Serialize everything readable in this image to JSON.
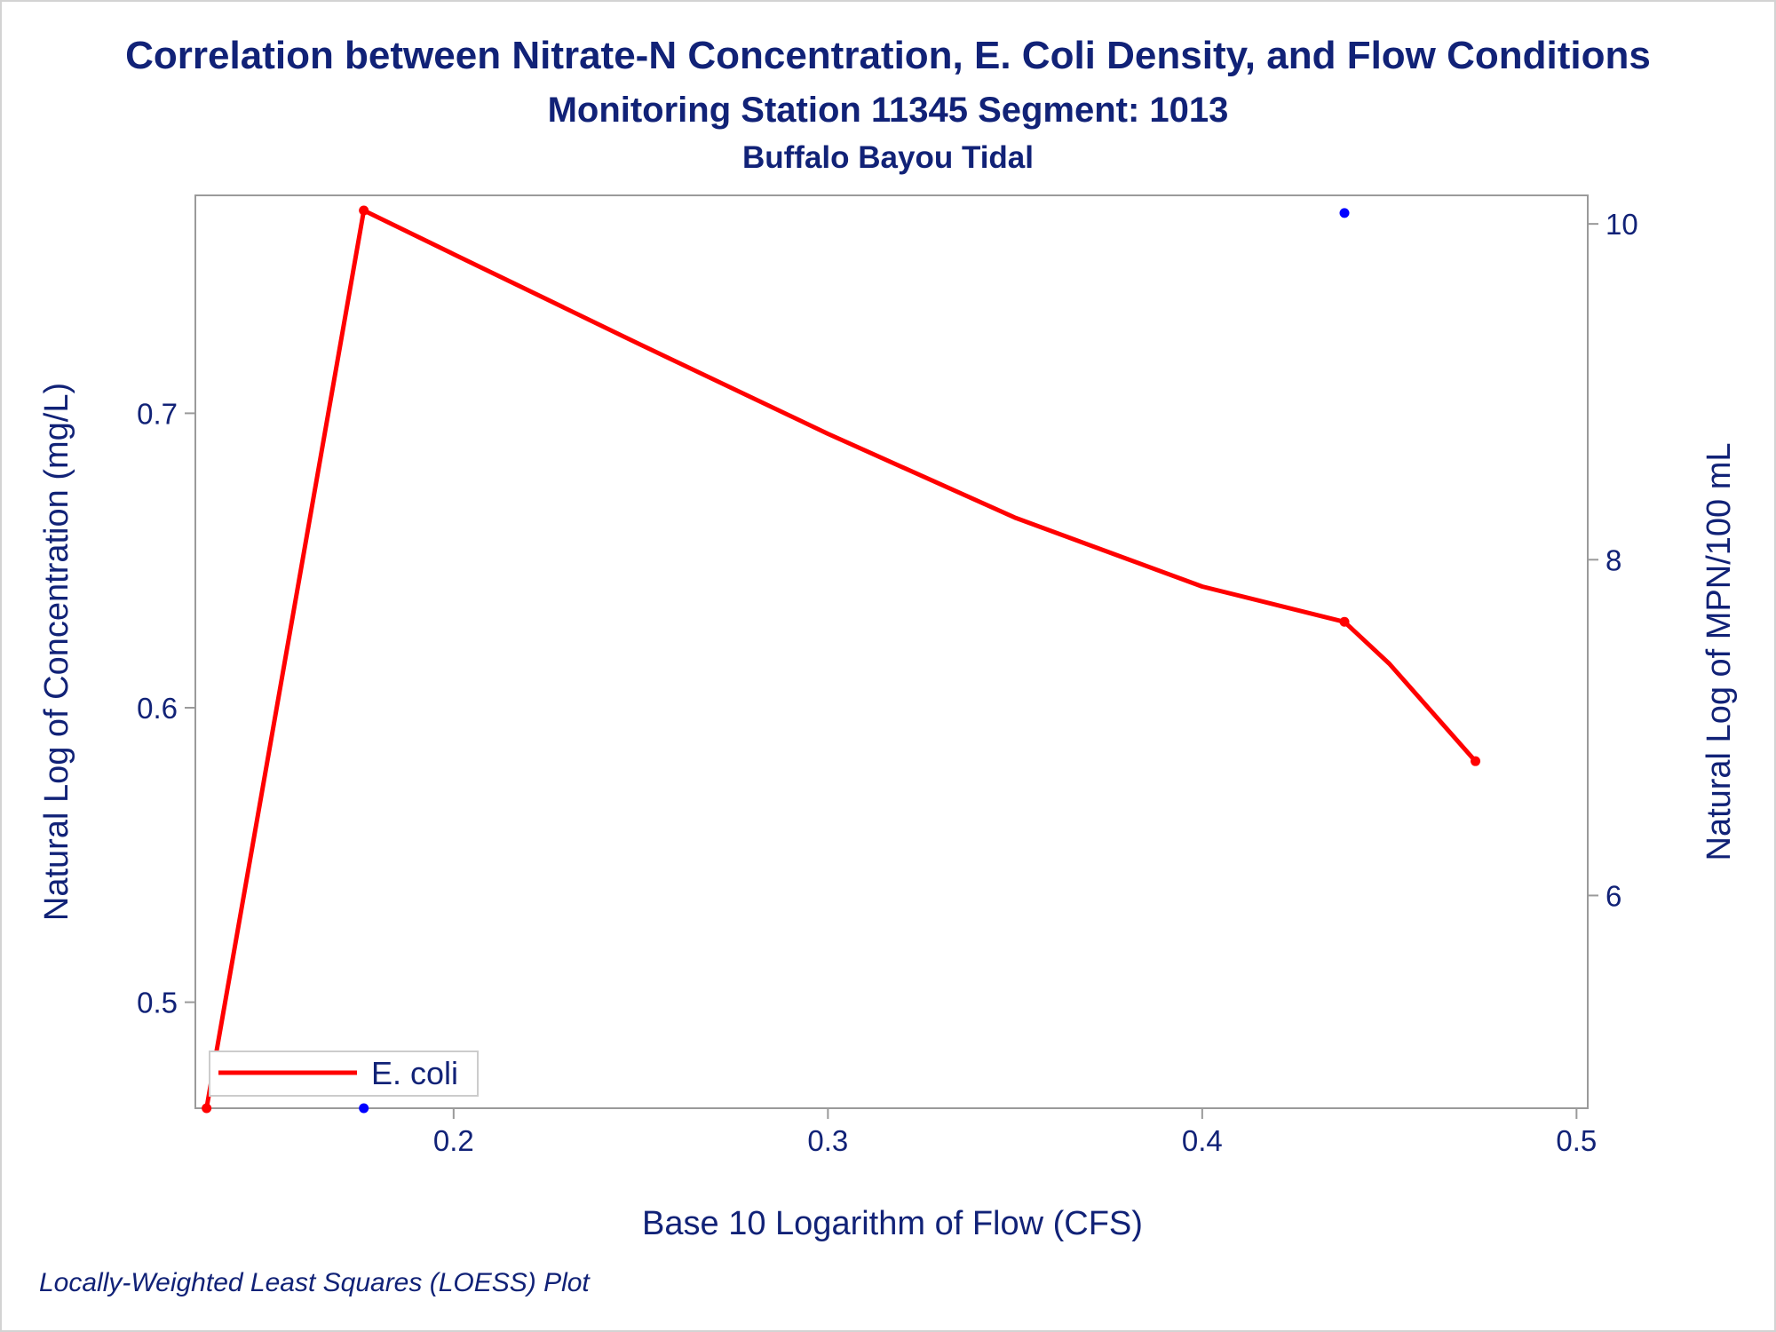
{
  "chart_data": {
    "type": "line",
    "title": "Correlation between Nitrate-N Concentration, E. Coli Density, and Flow Conditions",
    "subtitle": "Monitoring Station 11345 Segment: 1013",
    "subtitle2": "Buffalo Bayou Tidal",
    "footnote": "Locally-Weighted Least Squares (LOESS) Plot",
    "xlabel": "Base 10 Logarithm of Flow (CFS)",
    "ylabel_left": "Natural Log of Concentration (mg/L)",
    "ylabel_right": "Natural Log of MPN/100 mL",
    "xlim": [
      0.131,
      0.503
    ],
    "ylim_left": [
      0.464,
      0.774
    ],
    "ylim_right": [
      4.733,
      10.17
    ],
    "x_ticks": [
      "0.2",
      "0.3",
      "0.4",
      "0.5"
    ],
    "y_left_ticks": [
      "0.5",
      "0.6",
      "0.7"
    ],
    "y_right_ticks": [
      "6",
      "8",
      "10"
    ],
    "legend_position": "bottom-left",
    "grid": false,
    "series": [
      {
        "name": "E. coli",
        "axis": "right",
        "color": "#ff0000",
        "line_x": [
          0.134,
          0.176,
          0.2,
          0.25,
          0.3,
          0.35,
          0.4,
          0.438,
          0.45,
          0.473
        ],
        "line_y": [
          4.733,
          10.08,
          9.82,
          9.28,
          8.75,
          8.25,
          7.84,
          7.63,
          7.38,
          6.8
        ],
        "points_x": [
          0.134,
          0.176,
          0.438,
          0.473
        ],
        "points_y": [
          4.733,
          10.08,
          7.63,
          6.8
        ]
      },
      {
        "axis": "left",
        "color": "#0000ff",
        "points_x": [
          0.176,
          0.438
        ],
        "points_y": [
          0.464,
          0.768
        ]
      }
    ]
  }
}
